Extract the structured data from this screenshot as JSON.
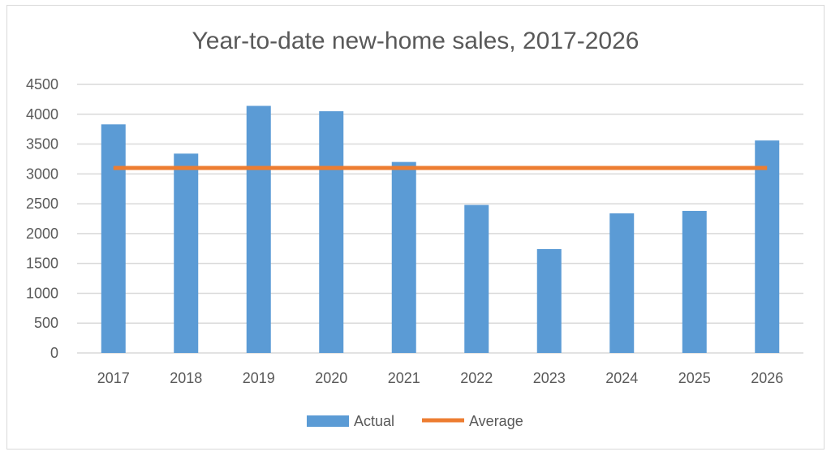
{
  "chart_data": {
    "type": "bar",
    "title": "Year-to-date new-home sales, 2017-2026",
    "xlabel": "",
    "ylabel": "",
    "categories": [
      "2017",
      "2018",
      "2019",
      "2020",
      "2021",
      "2022",
      "2023",
      "2024",
      "2025",
      "2026"
    ],
    "series": [
      {
        "name": "Actual",
        "type": "bar",
        "color": "#5b9bd5",
        "values": [
          3830,
          3340,
          4140,
          4050,
          3200,
          2480,
          1740,
          2340,
          2380,
          3560
        ]
      },
      {
        "name": "Average",
        "type": "line",
        "color": "#ed7d31",
        "values": [
          3100,
          3100,
          3100,
          3100,
          3100,
          3100,
          3100,
          3100,
          3100,
          3100
        ]
      }
    ],
    "yticks": [
      "0",
      "500",
      "1000",
      "1500",
      "2000",
      "2500",
      "3000",
      "3500",
      "4000",
      "4500"
    ],
    "ylim": [
      0,
      4500
    ],
    "grid": true,
    "gridColor": "#d9d9d9",
    "legend": "bottom"
  }
}
